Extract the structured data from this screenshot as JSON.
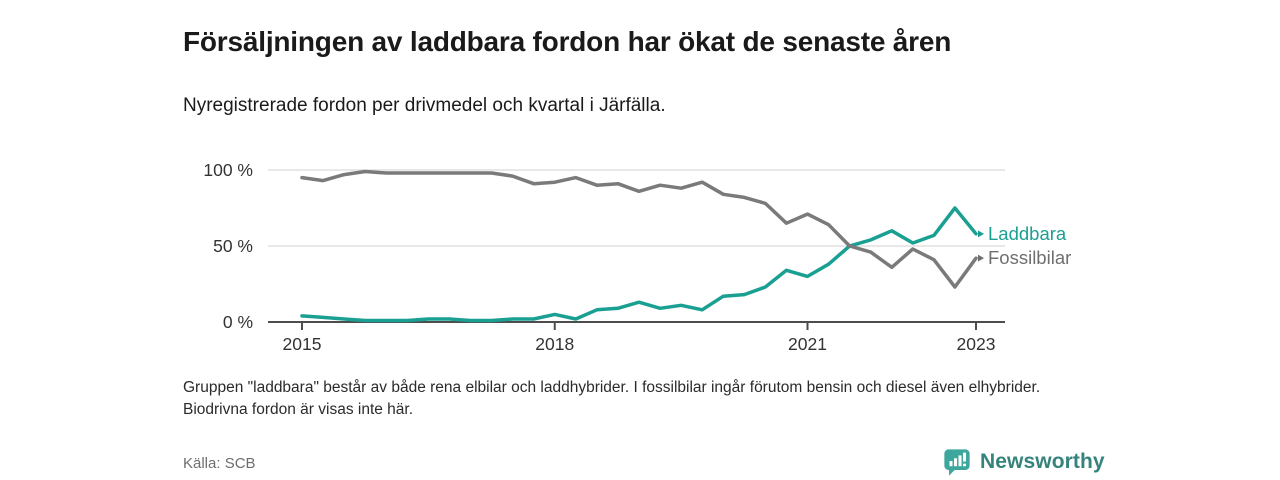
{
  "header": {
    "title": "Försäljningen av laddbara fordon har ökat de senaste åren",
    "subtitle": "Nyregistrerade fordon per drivmedel och kvartal i Järfälla."
  },
  "chart_data": {
    "type": "line",
    "unit": "percent",
    "grid": "horizontal",
    "legend_position": "line-end-labels",
    "ylim": [
      0,
      100
    ],
    "categories": [
      "2015 Q1",
      "2015 Q2",
      "2015 Q3",
      "2015 Q4",
      "2016 Q1",
      "2016 Q2",
      "2016 Q3",
      "2016 Q4",
      "2017 Q1",
      "2017 Q2",
      "2017 Q3",
      "2017 Q4",
      "2018 Q1",
      "2018 Q2",
      "2018 Q3",
      "2018 Q4",
      "2019 Q1",
      "2019 Q2",
      "2019 Q3",
      "2019 Q4",
      "2020 Q1",
      "2020 Q2",
      "2020 Q3",
      "2020 Q4",
      "2021 Q1",
      "2021 Q2",
      "2021 Q3",
      "2021 Q4",
      "2022 Q1",
      "2022 Q2",
      "2022 Q3",
      "2022 Q4",
      "2023 Q1"
    ],
    "series": [
      {
        "name": "Laddbara",
        "color": "#1aa092",
        "values": [
          4,
          3,
          2,
          1,
          1,
          1,
          2,
          2,
          1,
          1,
          2,
          2,
          5,
          2,
          8,
          9,
          13,
          9,
          11,
          8,
          17,
          18,
          23,
          34,
          30,
          38,
          50,
          54,
          60,
          52,
          57,
          75,
          58
        ]
      },
      {
        "name": "Fossilbilar",
        "color": "#7a7a7a",
        "label_color": "#6f6f6f",
        "values": [
          95,
          93,
          97,
          99,
          98,
          98,
          98,
          98,
          98,
          98,
          96,
          91,
          92,
          95,
          90,
          91,
          86,
          90,
          88,
          92,
          84,
          82,
          78,
          65,
          71,
          64,
          50,
          46,
          36,
          48,
          41,
          23,
          42
        ]
      }
    ],
    "y_ticks": [
      {
        "value": 0,
        "label": "0 %"
      },
      {
        "value": 50,
        "label": "50 %"
      },
      {
        "value": 100,
        "label": "100 %"
      }
    ],
    "x_ticks": [
      {
        "index": 0,
        "label": "2015"
      },
      {
        "index": 12,
        "label": "2018"
      },
      {
        "index": 24,
        "label": "2021"
      },
      {
        "index": 32,
        "label": "2023"
      }
    ]
  },
  "footnote": "Gruppen \"laddbara\" består av både rena elbilar och laddhybrider. I fossilbilar ingår förutom bensin och diesel även elhybrider. Biodrivna fordon är visas inte här.",
  "source": {
    "label": "Källa: SCB"
  },
  "branding": {
    "name": "Newsworthy",
    "icon": "bar-chart-speech-bubble-icon",
    "icon_color": "#3da79d",
    "text_color": "#35837c"
  }
}
